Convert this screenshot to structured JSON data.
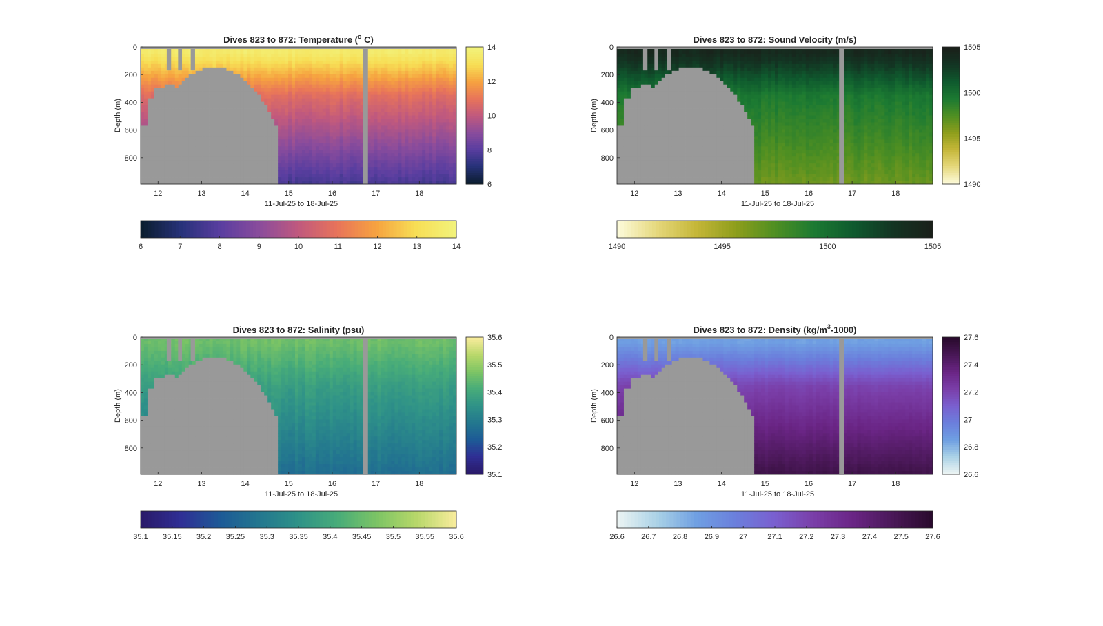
{
  "chart_data": [
    {
      "type": "heatmap",
      "title": "Dives 823 to 872: Temperature (",
      "title_sup": "o",
      "title_tail": " C)",
      "xlabel": "11-Jul-25 to 18-Jul-25",
      "ylabel": "Depth (m)",
      "x_ticks": [
        "12",
        "13",
        "14",
        "15",
        "16",
        "17",
        "18"
      ],
      "xlim": [
        11.6,
        18.85
      ],
      "y_ticks": [
        "0",
        "200",
        "400",
        "600",
        "800"
      ],
      "ylim": [
        0,
        990
      ],
      "colorbar_right": {
        "ticks": [
          "6",
          "8",
          "10",
          "12",
          "14"
        ],
        "range": [
          6,
          14
        ]
      },
      "colorbar_bottom": {
        "ticks": [
          "6",
          "7",
          "8",
          "9",
          "10",
          "11",
          "12",
          "13",
          "14"
        ],
        "range": [
          6,
          14
        ]
      },
      "colormap": [
        "#0c1e30",
        "#27327a",
        "#5a3ea0",
        "#8a4c9c",
        "#c0597e",
        "#e8745a",
        "#f6a340",
        "#f7de55",
        "#f2f27a"
      ],
      "profile": {
        "surface": 13.6,
        "mid": 10.8,
        "deep": 7.6,
        "noise": 0.4
      },
      "mask_color": "#999999"
    },
    {
      "type": "heatmap",
      "title": "Dives 823 to 872: Sound Velocity (m/s)",
      "xlabel": "11-Jul-25 to 18-Jul-25",
      "ylabel": "Depth (m)",
      "x_ticks": [
        "12",
        "13",
        "14",
        "15",
        "16",
        "17",
        "18"
      ],
      "xlim": [
        11.6,
        18.85
      ],
      "y_ticks": [
        "0",
        "200",
        "400",
        "600",
        "800"
      ],
      "ylim": [
        0,
        990
      ],
      "colorbar_right": {
        "ticks": [
          "1490",
          "1495",
          "1500",
          "1505"
        ],
        "range": [
          1490,
          1505
        ]
      },
      "colorbar_bottom": {
        "ticks": [
          "1490",
          "1495",
          "1500",
          "1505"
        ],
        "range": [
          1490,
          1505
        ]
      },
      "colormap": [
        "#fcfad8",
        "#e5d77a",
        "#c4b638",
        "#8e9e1c",
        "#4f8f22",
        "#1c7a32",
        "#0f5a2e",
        "#133523",
        "#1a201a"
      ],
      "profile": {
        "surface": 1504.2,
        "mid": 1499.5,
        "deep": 1496.6,
        "noise": 0.9
      },
      "mask_color": "#999999"
    },
    {
      "type": "heatmap",
      "title": "Dives 823 to 872: Salinity (psu)",
      "xlabel": "11-Jul-25 to 18-Jul-25",
      "ylabel": "Depth (m)",
      "x_ticks": [
        "12",
        "13",
        "14",
        "15",
        "16",
        "17",
        "18"
      ],
      "xlim": [
        11.6,
        18.85
      ],
      "y_ticks": [
        "0",
        "200",
        "400",
        "600",
        "800"
      ],
      "ylim": [
        0,
        990
      ],
      "colorbar_right": {
        "ticks": [
          "35.1",
          "35.2",
          "35.3",
          "35.4",
          "35.5",
          "35.6"
        ],
        "range": [
          35.1,
          35.6
        ]
      },
      "colorbar_bottom": {
        "ticks": [
          "35.1",
          "35.15",
          "35.2",
          "35.25",
          "35.3",
          "35.35",
          "35.4",
          "35.45",
          "35.5",
          "35.55",
          "35.6"
        ],
        "range": [
          35.1,
          35.6
        ]
      },
      "colormap": [
        "#2a1a6a",
        "#2f2f95",
        "#1d5a96",
        "#23778f",
        "#2f9288",
        "#48ac79",
        "#7cc465",
        "#b6d769",
        "#f6eb9a"
      ],
      "profile": {
        "surface": 35.46,
        "mid": 35.38,
        "deep": 35.27,
        "noise": 0.03
      },
      "mask_color": "#999999"
    },
    {
      "type": "heatmap",
      "title": "Dives 823 to 872: Density (kg/m",
      "title_sup": "3",
      "title_tail": "-1000)",
      "xlabel": "11-Jul-25 to 18-Jul-25",
      "ylabel": "Depth (m)",
      "x_ticks": [
        "12",
        "13",
        "14",
        "15",
        "16",
        "17",
        "18"
      ],
      "xlim": [
        11.6,
        18.85
      ],
      "y_ticks": [
        "0",
        "200",
        "400",
        "600",
        "800"
      ],
      "ylim": [
        0,
        990
      ],
      "colorbar_right": {
        "ticks": [
          "26.6",
          "26.8",
          "27",
          "27.2",
          "27.4",
          "27.6"
        ],
        "range": [
          26.6,
          27.6
        ]
      },
      "colorbar_bottom": {
        "ticks": [
          "26.6",
          "26.7",
          "26.8",
          "26.9",
          "27",
          "27.1",
          "27.2",
          "27.3",
          "27.4",
          "27.5",
          "27.6"
        ],
        "range": [
          26.6,
          27.6
        ]
      },
      "colormap": [
        "#eaf3f3",
        "#a9d1e6",
        "#6f9fe2",
        "#6b7fdc",
        "#7a5fcf",
        "#7a3ea8",
        "#6a2585",
        "#4a1858",
        "#2a0a2e"
      ],
      "profile": {
        "surface": 26.85,
        "mid": 27.2,
        "deep": 27.52,
        "noise": 0.03
      },
      "mask_color": "#999999"
    }
  ]
}
